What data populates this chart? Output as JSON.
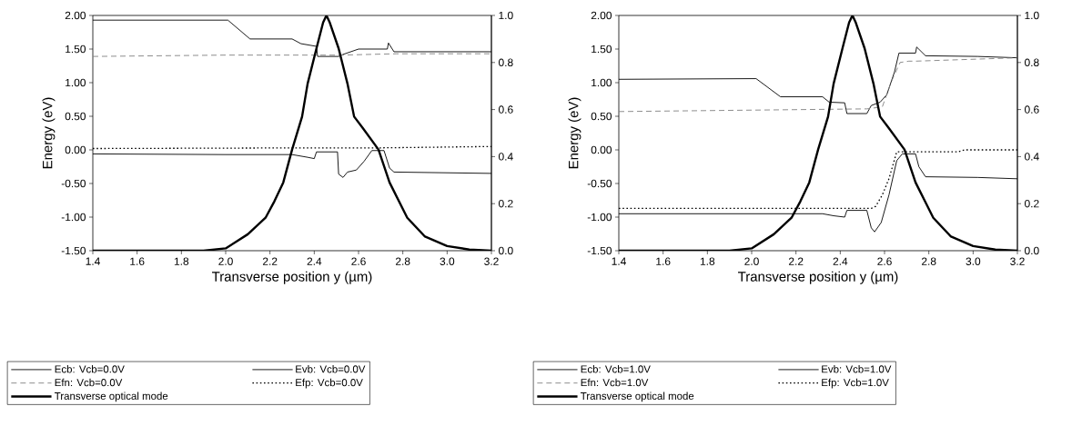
{
  "chart_data": [
    {
      "type": "line",
      "xlabel": "Transverse position y (µm)",
      "ylabel": "Energy (eV)",
      "xlim": [
        1.4,
        3.2
      ],
      "xticks": [
        {
          "value": 1.4,
          "label": "1.4"
        },
        {
          "value": 1.6,
          "label": "1.6"
        },
        {
          "value": 1.8,
          "label": "1.8"
        },
        {
          "value": 2.0,
          "label": "2.0"
        },
        {
          "value": 2.2,
          "label": "2.2"
        },
        {
          "value": 2.4,
          "label": "2.4"
        },
        {
          "value": 2.6,
          "label": "2.6"
        },
        {
          "value": 2.8,
          "label": "2.8"
        },
        {
          "value": 3.0,
          "label": "3.0"
        },
        {
          "value": 3.2,
          "label": "3.2"
        }
      ],
      "ylim": [
        -1.5,
        2.0
      ],
      "yticks": [
        {
          "value": -1.5,
          "label": "-1.50"
        },
        {
          "value": -1.0,
          "label": "-1.00"
        },
        {
          "value": -0.5,
          "label": "-0.50"
        },
        {
          "value": 0,
          "label": "0.00"
        },
        {
          "value": 0.5,
          "label": "0.50"
        },
        {
          "value": 1.0,
          "label": "1.00"
        },
        {
          "value": 1.5,
          "label": "1.50"
        },
        {
          "value": 2.0,
          "label": "2.00"
        }
      ],
      "y2lim": [
        0,
        1
      ],
      "y2ticks": [
        {
          "value": 0,
          "label": "0.0"
        },
        {
          "value": 0.2,
          "label": "0.2"
        },
        {
          "value": 0.4,
          "label": "0.4"
        },
        {
          "value": 0.6,
          "label": "0.6"
        },
        {
          "value": 0.8,
          "label": "0.8"
        },
        {
          "value": 1.0,
          "label": "1.0"
        }
      ],
      "legend": "bottom",
      "series": [
        {
          "name": "Ecb: Vcb=0.0V",
          "color": "#000000",
          "line_style": "solid",
          "x": [
            1.4,
            2.01,
            2.11,
            2.3,
            2.34,
            2.41,
            2.415,
            2.51,
            2.53,
            2.6,
            2.73,
            2.735,
            2.76,
            3.2
          ],
          "values": [
            1.93,
            1.93,
            1.65,
            1.65,
            1.58,
            1.54,
            1.39,
            1.39,
            1.42,
            1.5,
            1.5,
            1.59,
            1.46,
            1.46
          ]
        },
        {
          "name": "Evb: Vcb=0.0V",
          "color": "#000000",
          "line_style": "solid",
          "x": [
            1.4,
            2.0,
            2.3,
            2.37,
            2.4,
            2.41,
            2.505,
            2.51,
            2.53,
            2.55,
            2.59,
            2.625,
            2.66,
            2.715,
            2.74,
            2.76,
            3.2
          ],
          "values": [
            -0.06,
            -0.07,
            -0.07,
            -0.11,
            -0.13,
            -0.03,
            -0.03,
            -0.36,
            -0.41,
            -0.33,
            -0.3,
            -0.17,
            -0.01,
            -0.01,
            -0.27,
            -0.33,
            -0.35
          ]
        },
        {
          "name": "Efn: Vcb=0.0V",
          "color": "#808080",
          "line_style": "dashed",
          "x": [
            1.4,
            2.0,
            2.52,
            2.77,
            3.2
          ],
          "values": [
            1.39,
            1.41,
            1.41,
            1.43,
            1.43
          ]
        },
        {
          "name": "Efp: Vcb=0.0V",
          "color": "#000000",
          "line_style": "dotted",
          "x": [
            1.4,
            2.4,
            2.7,
            3.2
          ],
          "values": [
            0.02,
            0.03,
            0.03,
            0.05
          ]
        },
        {
          "name": "Transverse optical mode",
          "color": "#000000",
          "line_style": "solid",
          "axis": "y2",
          "x": [
            1.4,
            1.9,
            2.0,
            2.1,
            2.18,
            2.22,
            2.26,
            2.3,
            2.345,
            2.37,
            2.41,
            2.44,
            2.455,
            2.47,
            2.51,
            2.55,
            2.58,
            2.62,
            2.69,
            2.74,
            2.82,
            2.9,
            3.0,
            3.1,
            3.2
          ],
          "values": [
            0,
            0,
            0.01,
            0.07,
            0.14,
            0.21,
            0.29,
            0.43,
            0.57,
            0.71,
            0.86,
            0.97,
            1.0,
            0.97,
            0.86,
            0.71,
            0.57,
            0.52,
            0.43,
            0.29,
            0.14,
            0.06,
            0.02,
            0.005,
            0
          ]
        }
      ]
    },
    {
      "type": "line",
      "xlabel": "Transverse position y (µm)",
      "ylabel": "Energy (eV)",
      "xlim": [
        1.4,
        3.2
      ],
      "xticks": [
        {
          "value": 1.4,
          "label": "1.4"
        },
        {
          "value": 1.6,
          "label": "1.6"
        },
        {
          "value": 1.8,
          "label": "1.8"
        },
        {
          "value": 2.0,
          "label": "2.0"
        },
        {
          "value": 2.2,
          "label": "2.2"
        },
        {
          "value": 2.4,
          "label": "2.4"
        },
        {
          "value": 2.6,
          "label": "2.6"
        },
        {
          "value": 2.8,
          "label": "2.8"
        },
        {
          "value": 3.0,
          "label": "3.0"
        },
        {
          "value": 3.2,
          "label": "3.2"
        }
      ],
      "ylim": [
        -1.5,
        2.0
      ],
      "yticks": [
        {
          "value": -1.5,
          "label": "-1.50"
        },
        {
          "value": -1.0,
          "label": "-1.00"
        },
        {
          "value": -0.5,
          "label": "-0.50"
        },
        {
          "value": 0,
          "label": "0.00"
        },
        {
          "value": 0.5,
          "label": "0.50"
        },
        {
          "value": 1.0,
          "label": "1.00"
        },
        {
          "value": 1.5,
          "label": "1.50"
        },
        {
          "value": 2.0,
          "label": "2.00"
        }
      ],
      "y2lim": [
        0,
        1
      ],
      "y2ticks": [
        {
          "value": 0,
          "label": "0.0"
        },
        {
          "value": 0.2,
          "label": "0.2"
        },
        {
          "value": 0.4,
          "label": "0.4"
        },
        {
          "value": 0.6,
          "label": "0.6"
        },
        {
          "value": 0.8,
          "label": "0.8"
        },
        {
          "value": 1.0,
          "label": "1.0"
        }
      ],
      "legend": "bottom",
      "series": [
        {
          "name": "Ecb: Vcb=1.0V",
          "color": "#000000",
          "line_style": "solid",
          "x": [
            1.4,
            2.02,
            2.13,
            2.32,
            2.35,
            2.42,
            2.43,
            2.52,
            2.54,
            2.58,
            2.61,
            2.645,
            2.665,
            2.74,
            2.745,
            2.785,
            3.02,
            3.2
          ],
          "values": [
            1.05,
            1.06,
            0.79,
            0.79,
            0.71,
            0.7,
            0.54,
            0.54,
            0.66,
            0.71,
            0.82,
            1.16,
            1.44,
            1.44,
            1.53,
            1.4,
            1.39,
            1.37
          ]
        },
        {
          "name": "Evb: Vcb=1.0V",
          "color": "#000000",
          "line_style": "solid",
          "x": [
            1.4,
            2.32,
            2.37,
            2.42,
            2.43,
            2.52,
            2.54,
            2.555,
            2.585,
            2.62,
            2.655,
            2.68,
            2.74,
            2.755,
            2.785,
            3.02,
            3.2
          ],
          "values": [
            -0.95,
            -0.95,
            -0.98,
            -1.0,
            -0.9,
            -0.9,
            -1.16,
            -1.22,
            -1.08,
            -0.67,
            -0.16,
            -0.06,
            -0.06,
            -0.25,
            -0.4,
            -0.41,
            -0.43
          ]
        },
        {
          "name": "Efn: Vcb=1.0V",
          "color": "#808080",
          "line_style": "dashed",
          "x": [
            1.4,
            2.52,
            2.59,
            2.63,
            2.67,
            2.71,
            2.74,
            3.2
          ],
          "values": [
            0.57,
            0.61,
            0.64,
            1.01,
            1.3,
            1.32,
            1.32,
            1.37
          ]
        },
        {
          "name": "Efp: Vcb=1.0V",
          "color": "#000000",
          "line_style": "dotted",
          "x": [
            1.4,
            2.54,
            2.56,
            2.59,
            2.62,
            2.655,
            2.93,
            2.96,
            3.2
          ],
          "values": [
            -0.87,
            -0.87,
            -0.84,
            -0.67,
            -0.43,
            -0.03,
            -0.03,
            0.0,
            0.0
          ]
        },
        {
          "name": "Transverse optical mode",
          "color": "#000000",
          "line_style": "solid",
          "axis": "y2",
          "x": [
            1.4,
            1.9,
            2.0,
            2.1,
            2.18,
            2.22,
            2.26,
            2.3,
            2.345,
            2.37,
            2.41,
            2.44,
            2.455,
            2.47,
            2.51,
            2.55,
            2.58,
            2.62,
            2.69,
            2.74,
            2.82,
            2.9,
            3.0,
            3.1,
            3.2
          ],
          "values": [
            0,
            0,
            0.01,
            0.07,
            0.14,
            0.21,
            0.29,
            0.43,
            0.57,
            0.71,
            0.86,
            0.97,
            1.0,
            0.97,
            0.86,
            0.71,
            0.57,
            0.52,
            0.43,
            0.29,
            0.14,
            0.06,
            0.02,
            0.005,
            0
          ]
        }
      ]
    }
  ]
}
